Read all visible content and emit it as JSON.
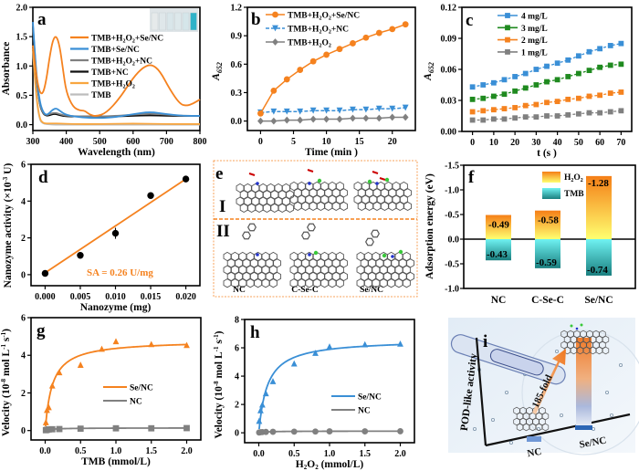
{
  "figure": {
    "panel_labels": [
      "a",
      "b",
      "c",
      "d",
      "e",
      "f",
      "g",
      "h",
      "i"
    ]
  },
  "colors": {
    "orange": "#f5821f",
    "blue": "#3a8fd6",
    "gray": "#808080",
    "black": "#111111",
    "lightgray": "#bdbdbd",
    "green": "#1f8a1f",
    "teal": "#1fa8a8",
    "yellow": "#ffff66"
  },
  "chart_data": [
    {
      "panel": "a",
      "type": "line",
      "xlabel": "Wavelength (nm)",
      "ylabel": "Absorbance",
      "xlim": [
        300,
        800
      ],
      "ylim": [
        -0.1,
        2.0
      ],
      "xticks": [
        300,
        400,
        500,
        600,
        700,
        800
      ],
      "yticks": [
        0.0,
        0.5,
        1.0,
        1.5,
        2.0
      ],
      "ytick_labels": [
        "0.0",
        "0.5",
        "1.0",
        "1.5",
        "2.0"
      ],
      "inset": "vial photo (6 vials, last one blue)",
      "series": [
        {
          "name": "TMB+H2O2+Se/NC",
          "color": "#f5821f",
          "x": [
            300,
            310,
            320,
            330,
            340,
            350,
            360,
            370,
            380,
            390,
            400,
            420,
            440,
            455,
            470,
            490,
            520,
            560,
            600,
            630,
            655,
            680,
            710,
            740,
            760,
            780,
            800
          ],
          "y": [
            1.35,
            0.85,
            0.55,
            0.52,
            0.75,
            1.15,
            1.45,
            1.52,
            1.35,
            0.95,
            0.55,
            0.3,
            0.24,
            0.24,
            0.17,
            0.14,
            0.2,
            0.45,
            0.8,
            0.98,
            1.03,
            0.92,
            0.6,
            0.35,
            0.32,
            0.36,
            0.43
          ]
        },
        {
          "name": "TMB+Se/NC",
          "color": "#3a8fd6",
          "x": [
            300,
            310,
            320,
            330,
            340,
            350,
            360,
            370,
            380,
            400,
            450,
            500,
            550,
            600,
            650,
            700,
            750,
            800
          ],
          "y": [
            1.75,
            0.9,
            0.4,
            0.22,
            0.16,
            0.2,
            0.26,
            0.28,
            0.24,
            0.16,
            0.12,
            0.11,
            0.13,
            0.18,
            0.22,
            0.18,
            0.15,
            0.15
          ]
        },
        {
          "name": "TMB+H2O2+NC",
          "color": "#808080",
          "x": [
            300,
            310,
            320,
            330,
            340,
            350,
            360,
            370,
            380,
            400,
            450,
            500,
            550,
            600,
            650,
            700,
            750,
            800
          ],
          "y": [
            1.7,
            0.85,
            0.35,
            0.2,
            0.16,
            0.18,
            0.2,
            0.2,
            0.18,
            0.15,
            0.14,
            0.14,
            0.15,
            0.17,
            0.19,
            0.17,
            0.15,
            0.15
          ]
        },
        {
          "name": "TMB+NC",
          "color": "#111111",
          "x": [
            300,
            310,
            320,
            330,
            340,
            350,
            360,
            370,
            380,
            400,
            450,
            500,
            550,
            600,
            650,
            700,
            750,
            800
          ],
          "y": [
            1.68,
            0.82,
            0.34,
            0.19,
            0.15,
            0.16,
            0.18,
            0.18,
            0.16,
            0.14,
            0.14,
            0.14,
            0.14,
            0.15,
            0.16,
            0.15,
            0.15,
            0.15
          ]
        },
        {
          "name": "TMB+H2O2",
          "color": "#f8a640",
          "x": [
            300,
            310,
            320,
            330,
            340,
            360,
            380,
            420,
            500,
            600,
            700,
            800
          ],
          "y": [
            1.3,
            0.5,
            0.1,
            0.03,
            0.02,
            0.02,
            0.02,
            0.01,
            0.01,
            0.02,
            0.01,
            0.01
          ]
        },
        {
          "name": "TMB",
          "color": "#bdbdbd",
          "x": [
            300,
            310,
            320,
            330,
            340,
            360,
            380,
            420,
            500,
            600,
            700,
            800
          ],
          "y": [
            1.25,
            0.45,
            0.08,
            0.02,
            0.01,
            0.0,
            0.0,
            0.0,
            0.0,
            0.0,
            0.0,
            0.0
          ]
        }
      ]
    },
    {
      "panel": "b",
      "type": "line",
      "xlabel": "Time (min )",
      "ylabel": "A652",
      "xlim": [
        -2,
        23.5
      ],
      "ylim": [
        -0.1,
        1.2
      ],
      "xticks": [
        0,
        5,
        10,
        15,
        20
      ],
      "yticks": [
        0.0,
        0.3,
        0.6,
        0.9,
        1.2
      ],
      "ytick_labels": [
        "0.0",
        "0.3",
        "0.6",
        "0.9",
        "1.2"
      ],
      "x": [
        0,
        2,
        4,
        6,
        8,
        10,
        12,
        14,
        16,
        18,
        20,
        22
      ],
      "series": [
        {
          "name": "TMB+H2O2+Se/NC",
          "color": "#f5821f",
          "marker": "circle",
          "y": [
            0.08,
            0.32,
            0.44,
            0.54,
            0.63,
            0.7,
            0.76,
            0.82,
            0.88,
            0.93,
            0.97,
            1.02
          ]
        },
        {
          "name": "TMB+H2O2+NC",
          "color": "#3a8fd6",
          "marker": "triangle-down",
          "dash": true,
          "y": [
            0.09,
            0.1,
            0.1,
            0.1,
            0.11,
            0.11,
            0.11,
            0.12,
            0.12,
            0.13,
            0.13,
            0.14
          ]
        },
        {
          "name": "TMB+H2O2",
          "color": "#808080",
          "marker": "diamond",
          "y": [
            0.0,
            0.0,
            0.01,
            0.01,
            0.02,
            0.02,
            0.02,
            0.03,
            0.03,
            0.03,
            0.04,
            0.04
          ]
        }
      ]
    },
    {
      "panel": "c",
      "type": "line",
      "xlabel": "t (s )",
      "ylabel": "A652",
      "xlim": [
        -5,
        75
      ],
      "ylim": [
        0.0,
        0.12
      ],
      "xticks": [
        0,
        10,
        20,
        30,
        40,
        50,
        60,
        70
      ],
      "yticks": [
        0.0,
        0.03,
        0.06,
        0.09,
        0.12
      ],
      "ytick_labels": [
        "0.00",
        "0.03",
        "0.06",
        "0.09",
        "0.12"
      ],
      "x": [
        0,
        5,
        10,
        15,
        20,
        25,
        30,
        35,
        40,
        45,
        50,
        55,
        60,
        65,
        70
      ],
      "series": [
        {
          "name": "4 mg/L",
          "color": "#3a8fd6",
          "y": [
            0.043,
            0.045,
            0.047,
            0.05,
            0.053,
            0.056,
            0.06,
            0.063,
            0.066,
            0.069,
            0.073,
            0.077,
            0.08,
            0.083,
            0.085
          ]
        },
        {
          "name": "3 mg/L",
          "color": "#1f8a1f",
          "y": [
            0.031,
            0.032,
            0.034,
            0.036,
            0.039,
            0.042,
            0.045,
            0.048,
            0.05,
            0.053,
            0.056,
            0.059,
            0.062,
            0.064,
            0.065
          ]
        },
        {
          "name": "2 mg/L",
          "color": "#f5821f",
          "y": [
            0.019,
            0.02,
            0.021,
            0.022,
            0.023,
            0.025,
            0.026,
            0.028,
            0.029,
            0.031,
            0.032,
            0.034,
            0.035,
            0.037,
            0.038
          ]
        },
        {
          "name": "1 mg/L",
          "color": "#808080",
          "y": [
            0.011,
            0.011,
            0.012,
            0.012,
            0.013,
            0.014,
            0.014,
            0.015,
            0.015,
            0.016,
            0.017,
            0.018,
            0.018,
            0.019,
            0.02
          ]
        }
      ]
    },
    {
      "panel": "d",
      "type": "scatter",
      "xlabel": "Nanozyme  (mg)",
      "ylabel": "Nanozyme activity (×10⁻³ U)",
      "xlim": [
        -0.002,
        0.022
      ],
      "ylim": [
        -0.6,
        6
      ],
      "xticks": [
        0.0,
        0.005,
        0.01,
        0.015,
        0.02
      ],
      "xtick_labels": [
        "0.000",
        "0.005",
        "0.010",
        "0.015",
        "0.020"
      ],
      "yticks": [
        0,
        2,
        4,
        6
      ],
      "ytick_labels": [
        "0",
        "2",
        "4",
        "6"
      ],
      "x": [
        0.0,
        0.005,
        0.01,
        0.015,
        0.02
      ],
      "y": [
        0.07,
        1.05,
        2.25,
        4.3,
        5.2
      ],
      "err": [
        0.1,
        0.1,
        0.3,
        0.1,
        0.15
      ],
      "fit": {
        "slope": 255,
        "intercept": 0.1,
        "color": "#f5821f"
      },
      "annotation": "SA = 0.26 U/mg"
    },
    {
      "panel": "f",
      "type": "bar",
      "xlabel": "",
      "ylabel": "Adsorption energy (eV)",
      "ylim": [
        -1.5,
        1.0
      ],
      "inverted": true,
      "yticks": [
        -1.5,
        -1.0,
        -0.5,
        0.0,
        0.5,
        1.0
      ],
      "ytick_labels": [
        "-1.5",
        "-1.0",
        "-0.5",
        "0.0",
        "-0.5",
        "-1.0"
      ],
      "categories": [
        "NC",
        "C-Se-C",
        "Se/NC"
      ],
      "series": [
        {
          "name": "H2O2",
          "values": [
            -0.49,
            -0.58,
            -1.28
          ],
          "labels": [
            "-0.49",
            "-0.58",
            "-1.28"
          ]
        },
        {
          "name": "TMB",
          "values": [
            -0.43,
            -0.59,
            -0.74
          ],
          "labels": [
            "-0.43",
            "-0.59",
            "-0.74"
          ]
        }
      ]
    },
    {
      "panel": "g",
      "type": "scatter",
      "xlabel": "TMB (mmol/L)",
      "ylabel": "Velocity (10⁻⁸ mol L⁻¹ s⁻¹)",
      "xlim": [
        -0.2,
        2.2
      ],
      "ylim": [
        -0.5,
        6
      ],
      "xticks": [
        0.0,
        0.5,
        1.0,
        1.5,
        2.0
      ],
      "xtick_labels": [
        "0.0",
        "0.5",
        "1.0",
        "1.5",
        "2.0"
      ],
      "yticks": [
        0,
        2,
        4,
        6
      ],
      "ytick_labels": [
        "0",
        "2",
        "4",
        "6"
      ],
      "series": [
        {
          "name": "Se/NC",
          "color": "#f5821f",
          "marker": "triangle",
          "x": [
            0.01,
            0.025,
            0.05,
            0.1,
            0.2,
            0.5,
            0.8,
            1.0,
            1.5,
            2.0
          ],
          "y": [
            0.45,
            1.1,
            1.25,
            2.4,
            3.1,
            3.5,
            4.35,
            4.75,
            4.6,
            4.55
          ],
          "fit": {
            "vmax": 4.8,
            "km": 0.1
          }
        },
        {
          "name": "NC",
          "color": "#808080",
          "marker": "square",
          "x": [
            0.01,
            0.025,
            0.05,
            0.1,
            0.2,
            0.5,
            1.0,
            1.5,
            2.0
          ],
          "y": [
            0.02,
            0.04,
            0.06,
            0.07,
            0.08,
            0.1,
            0.12,
            0.12,
            0.13
          ],
          "fit": {
            "vmax": 0.14,
            "km": 0.1
          }
        }
      ]
    },
    {
      "panel": "h",
      "type": "scatter",
      "xlabel": "H₂O₂ (mmol/L)",
      "ylabel": "Velocity (10⁻⁸ mol L⁻¹ s⁻¹)",
      "xlim": [
        -0.2,
        2.2
      ],
      "ylim": [
        -0.7,
        8
      ],
      "xticks": [
        0.0,
        0.5,
        1.0,
        1.5,
        2.0
      ],
      "xtick_labels": [
        "0.0",
        "0.5",
        "1.0",
        "1.5",
        "2.0"
      ],
      "yticks": [
        0,
        2,
        4,
        6,
        8
      ],
      "ytick_labels": [
        "0",
        "2",
        "4",
        "6",
        "8"
      ],
      "series": [
        {
          "name": "Se/NC",
          "color": "#3a8fd6",
          "marker": "triangle",
          "x": [
            0.005,
            0.025,
            0.05,
            0.1,
            0.2,
            0.5,
            0.8,
            1.0,
            1.5,
            2.0
          ],
          "y": [
            0.85,
            1.6,
            2.0,
            2.8,
            3.65,
            4.9,
            5.65,
            6.1,
            6.25,
            6.3
          ],
          "fit": {
            "vmax": 6.6,
            "km": 0.12
          }
        },
        {
          "name": "NC",
          "color": "#808080",
          "marker": "circle",
          "x": [
            0.005,
            0.025,
            0.05,
            0.1,
            0.2,
            0.5,
            0.8,
            1.0,
            1.5,
            2.0
          ],
          "y": [
            0.02,
            0.04,
            0.05,
            0.06,
            0.07,
            0.08,
            0.09,
            0.1,
            0.1,
            0.11
          ],
          "fit": {
            "vmax": 0.12,
            "km": 0.1
          }
        }
      ]
    }
  ],
  "panel_e": {
    "row_labels": [
      "I",
      "II"
    ],
    "structure_labels": [
      "NC",
      "C-Se-C",
      "Se/NC"
    ]
  },
  "panel_i": {
    "ylabel": "POD-like activity",
    "arrow_label": "185-fold",
    "bar_labels": [
      "NC",
      "Se/NC"
    ]
  }
}
